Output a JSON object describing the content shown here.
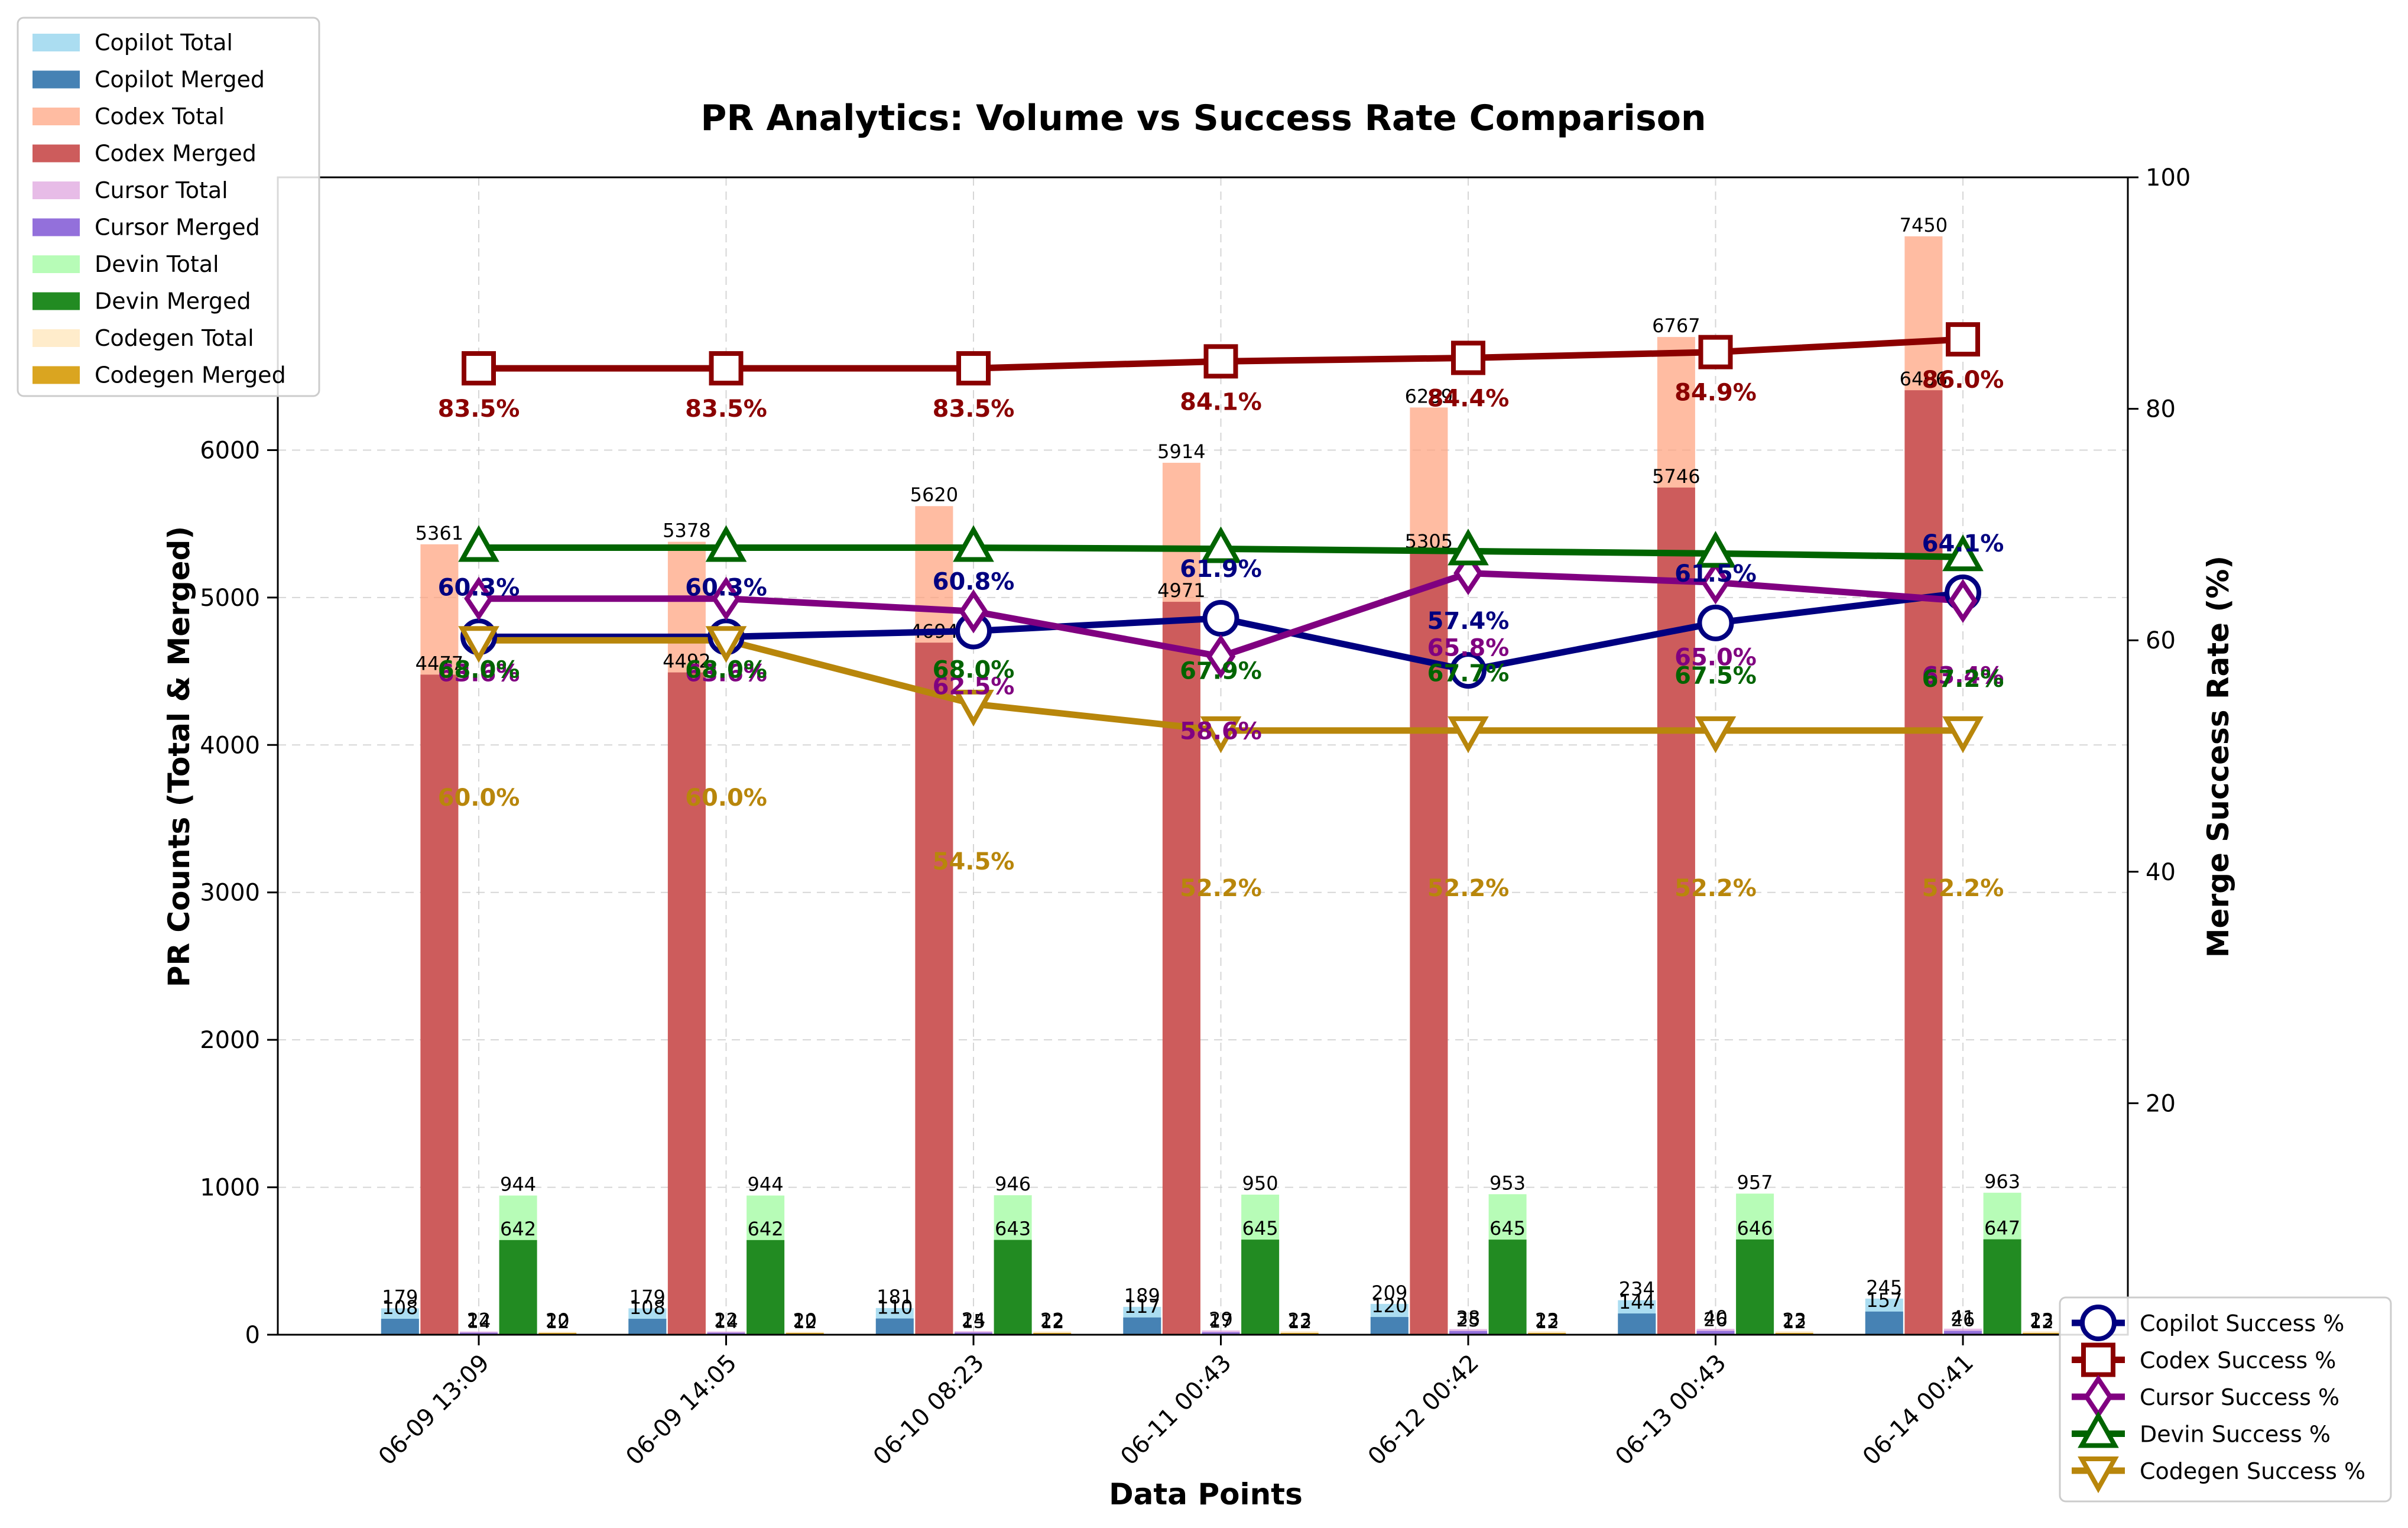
{
  "chart_data": {
    "type": "bar",
    "title": "PR Analytics: Volume vs Success Rate Comparison",
    "xlabel": "Data Points",
    "ylabel": "PR Counts (Total & Merged)",
    "y2label": "Merge Success Rate (%)",
    "ylim": [
      0,
      7850
    ],
    "y2lim": [
      0,
      100
    ],
    "yticks": [
      0,
      1000,
      2000,
      3000,
      4000,
      5000,
      6000
    ],
    "y2ticks": [
      20,
      40,
      60,
      80,
      100
    ],
    "grid": true,
    "categories": [
      "06-09 13:09",
      "06-09 14:05",
      "06-10 08:23",
      "06-11 00:43",
      "06-12 00:42",
      "06-13 00:43",
      "06-14 00:41"
    ],
    "bar_series": [
      {
        "name": "Copilot Total",
        "color": "#87CEEB",
        "alpha": 0.7,
        "slot": 0,
        "values": [
          179,
          179,
          181,
          189,
          209,
          234,
          245
        ]
      },
      {
        "name": "Copilot Merged",
        "color": "#4682B4",
        "alpha": 1,
        "slot": 0,
        "values": [
          108,
          108,
          110,
          117,
          120,
          144,
          157
        ]
      },
      {
        "name": "Codex Total",
        "color": "#FFA07A",
        "alpha": 0.7,
        "slot": 1,
        "values": [
          5361,
          5378,
          5620,
          5914,
          6289,
          6767,
          7450
        ]
      },
      {
        "name": "Codex Merged",
        "color": "#CD5C5C",
        "alpha": 1,
        "slot": 1,
        "values": [
          4477,
          4492,
          4694,
          4971,
          5305,
          5746,
          6406
        ]
      },
      {
        "name": "Cursor Total",
        "color": "#DDA0DD",
        "alpha": 0.7,
        "slot": 2,
        "values": [
          22,
          22,
          24,
          29,
          38,
          40,
          41
        ]
      },
      {
        "name": "Cursor Merged",
        "color": "#9370DB",
        "alpha": 1,
        "slot": 2,
        "values": [
          14,
          14,
          15,
          17,
          25,
          26,
          26
        ]
      },
      {
        "name": "Devin Total",
        "color": "#98FB98",
        "alpha": 0.7,
        "slot": 3,
        "values": [
          944,
          944,
          946,
          950,
          953,
          957,
          963
        ]
      },
      {
        "name": "Devin Merged",
        "color": "#228B22",
        "alpha": 1,
        "slot": 3,
        "values": [
          642,
          642,
          643,
          645,
          645,
          646,
          647
        ]
      },
      {
        "name": "Codegen Total",
        "color": "#FFE4B5",
        "alpha": 0.7,
        "slot": 4,
        "values": [
          20,
          20,
          22,
          23,
          23,
          23,
          23
        ]
      },
      {
        "name": "Codegen Merged",
        "color": "#DAA520",
        "alpha": 1,
        "slot": 4,
        "values": [
          12,
          12,
          12,
          12,
          12,
          12,
          12
        ]
      }
    ],
    "line_series": [
      {
        "name": "Copilot Success %",
        "color": "#000080",
        "marker": "circle",
        "values": [
          60.3,
          60.3,
          60.8,
          61.9,
          57.4,
          61.5,
          64.1
        ]
      },
      {
        "name": "Codex Success %",
        "color": "#8B0000",
        "marker": "square",
        "values": [
          83.5,
          83.5,
          83.5,
          84.1,
          84.4,
          84.9,
          86.0
        ]
      },
      {
        "name": "Cursor Success %",
        "color": "#800080",
        "marker": "diamond",
        "values": [
          63.6,
          63.6,
          62.5,
          58.6,
          65.8,
          65.0,
          63.4
        ]
      },
      {
        "name": "Devin Success %",
        "color": "#006400",
        "marker": "triangle-up",
        "values": [
          68.0,
          68.0,
          68.0,
          67.9,
          67.7,
          67.5,
          67.2
        ]
      },
      {
        "name": "Codegen Success %",
        "color": "#B8860B",
        "marker": "triangle-down",
        "values": [
          60.0,
          60.0,
          54.5,
          52.2,
          52.2,
          52.2,
          52.2
        ]
      }
    ]
  }
}
